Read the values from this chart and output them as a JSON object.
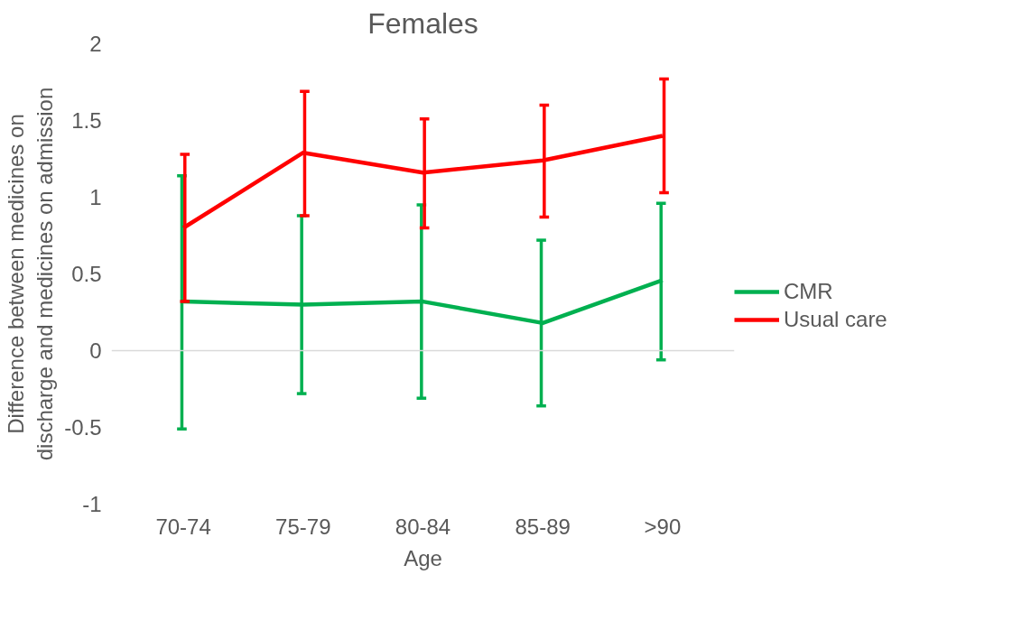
{
  "chart_data": {
    "type": "line",
    "title": "Females",
    "xlabel": "Age",
    "ylabel": "Difference between medicines on discharge and medicines on admission",
    "categories": [
      "70-74",
      "75-79",
      "80-84",
      "85-89",
      ">90"
    ],
    "series": [
      {
        "name": "CMR",
        "color": "#00b050",
        "values": [
          0.32,
          0.3,
          0.32,
          0.18,
          0.46
        ],
        "errors": [
          [
            -0.51,
            1.14
          ],
          [
            -0.28,
            0.88
          ],
          [
            -0.31,
            0.95
          ],
          [
            -0.36,
            0.72
          ],
          [
            -0.06,
            0.96
          ]
        ]
      },
      {
        "name": "Usual care",
        "color": "#ff0000",
        "values": [
          0.8,
          1.29,
          1.16,
          1.24,
          1.4
        ],
        "errors": [
          [
            0.32,
            1.28
          ],
          [
            0.88,
            1.69
          ],
          [
            0.8,
            1.51
          ],
          [
            0.87,
            1.6
          ],
          [
            1.03,
            1.77
          ]
        ]
      }
    ],
    "ylim": [
      -1,
      2
    ],
    "yticks": [
      -1,
      -0.5,
      0,
      0.5,
      1,
      1.5,
      2
    ],
    "grid": false,
    "legend": "right",
    "line_style": "solid",
    "ref_lines": [
      {
        "axis": "y",
        "value": 0,
        "color": "#d9d9d9"
      }
    ]
  }
}
